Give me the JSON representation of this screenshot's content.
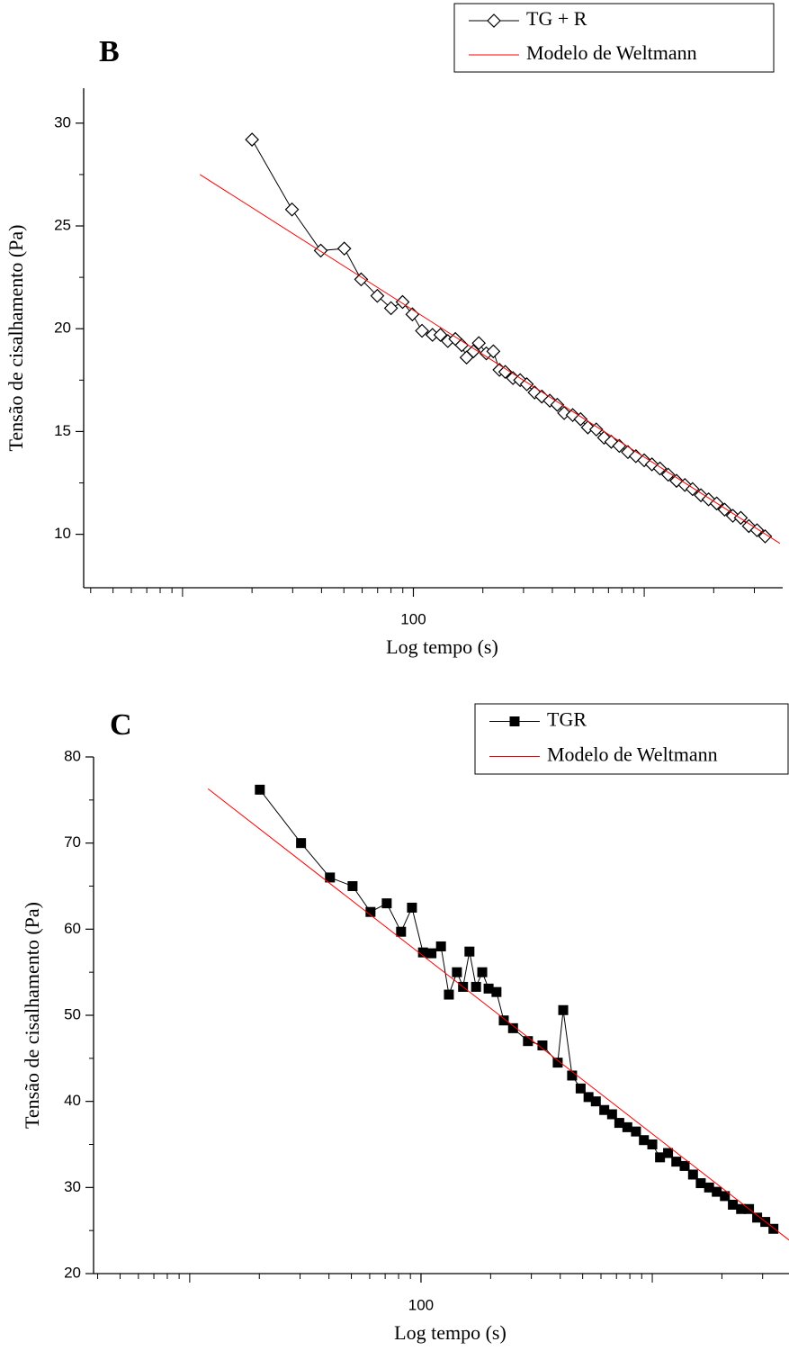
{
  "chart_data": [
    {
      "type": "line",
      "panel_label": "B",
      "xlabel": "Log tempo (s)",
      "ylabel": "Tensão de cisalhamento (Pa)",
      "xscale": "log",
      "xlim": [
        3.73,
        3980
      ],
      "xticks": [
        100
      ],
      "ylim": [
        7.4,
        31.7
      ],
      "yticks": [
        10,
        15,
        20,
        25,
        30
      ],
      "legend": "upper right",
      "series": [
        {
          "name": "TG + R",
          "color": "#000000",
          "marker": "diamond",
          "x": [
            20,
            29.8,
            39.7,
            50.2,
            59.4,
            69.8,
            80,
            89.8,
            99,
            109,
            121,
            131,
            141,
            152,
            162,
            170,
            182,
            192,
            207,
            222,
            236,
            250,
            270,
            290,
            310,
            335,
            360,
            390,
            420,
            450,
            490,
            530,
            570,
            620,
            670,
            720,
            780,
            850,
            920,
            1000,
            1080,
            1170,
            1270,
            1380,
            1500,
            1620,
            1760,
            1900,
            2060,
            2230,
            2420,
            2620,
            2840,
            3080,
            3340
          ],
          "values": [
            29.2,
            25.8,
            23.8,
            23.9,
            22.4,
            21.6,
            21.0,
            21.3,
            20.7,
            19.9,
            19.7,
            19.7,
            19.4,
            19.5,
            19.2,
            18.6,
            18.9,
            19.3,
            18.8,
            18.9,
            18.0,
            17.9,
            17.6,
            17.5,
            17.3,
            16.9,
            16.7,
            16.5,
            16.3,
            15.9,
            15.8,
            15.6,
            15.2,
            15.1,
            14.7,
            14.5,
            14.3,
            14.0,
            13.8,
            13.6,
            13.4,
            13.2,
            12.9,
            12.6,
            12.4,
            12.2,
            11.9,
            11.7,
            11.5,
            11.2,
            10.9,
            10.8,
            10.4,
            10.2,
            9.9
          ]
        },
        {
          "name": "Modelo de Weltmann",
          "color": "#ff0000",
          "marker": "none",
          "x": [
            11.9,
            3870
          ],
          "values": [
            27.5,
            9.56
          ]
        }
      ]
    },
    {
      "type": "line",
      "panel_label": "C",
      "xlabel": "Log tempo (s)",
      "ylabel": "Tensão de cisalhamento (Pa)",
      "xscale": "log",
      "xlim": [
        3.84,
        3900
      ],
      "xticks": [
        100
      ],
      "ylim": [
        20,
        80
      ],
      "yticks": [
        20,
        30,
        40,
        50,
        60,
        70,
        80
      ],
      "legend": "upper right",
      "series": [
        {
          "name": "TGR",
          "color": "#000000",
          "marker": "square",
          "x": [
            20.1,
            30.3,
            40.4,
            50.6,
            60.5,
            71.1,
            82,
            91.4,
            102,
            111,
            122,
            132,
            143,
            152,
            162,
            173,
            184,
            196,
            212,
            228,
            250,
            290,
            335,
            390,
            412,
            450,
            490,
            530,
            570,
            620,
            670,
            720,
            780,
            850,
            920,
            1000,
            1080,
            1170,
            1270,
            1380,
            1500,
            1620,
            1760,
            1900,
            2060,
            2230,
            2420,
            2620,
            2840,
            3080,
            3340
          ],
          "values": [
            76.2,
            70.0,
            66.0,
            65.0,
            62.0,
            63.0,
            59.7,
            62.5,
            57.3,
            57.2,
            58.0,
            52.4,
            55.0,
            53.3,
            57.4,
            53.3,
            55.0,
            53.1,
            52.7,
            49.4,
            48.5,
            47.0,
            46.5,
            44.5,
            50.6,
            43.0,
            41.5,
            40.5,
            40.0,
            39.0,
            38.5,
            37.5,
            37.0,
            36.5,
            35.5,
            35.0,
            33.5,
            34.0,
            33.0,
            32.5,
            31.5,
            30.5,
            30.0,
            29.5,
            29.0,
            28.0,
            27.5,
            27.5,
            26.5,
            26.0,
            25.2
          ]
        },
        {
          "name": "Modelo de Weltmann",
          "color": "#ff0000",
          "marker": "none",
          "x": [
            12.0,
            3900
          ],
          "values": [
            76.3,
            23.9
          ]
        }
      ]
    }
  ]
}
